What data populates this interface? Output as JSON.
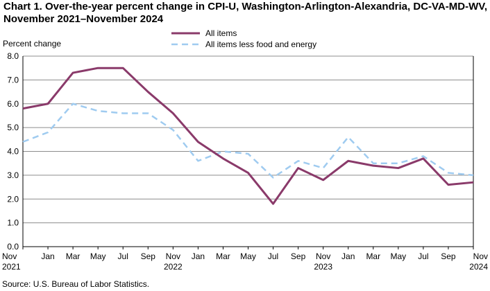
{
  "chart_data": {
    "type": "line",
    "title": "Chart 1. Over-the-year percent change in CPI-U, Washington-Arlington-Alexandria,  DC-VA-MD-WV, November 2021–November 2024",
    "ylabel": "Percent change",
    "xlabel": "",
    "ylim": [
      0,
      8
    ],
    "yticks": [
      "0.0",
      "1.0",
      "2.0",
      "3.0",
      "4.0",
      "5.0",
      "6.0",
      "7.0",
      "8.0"
    ],
    "xticks": [
      {
        "label": "Nov",
        "year": "2021"
      },
      {
        "label": "Jan",
        "year": ""
      },
      {
        "label": "Mar",
        "year": ""
      },
      {
        "label": "May",
        "year": ""
      },
      {
        "label": "Jul",
        "year": ""
      },
      {
        "label": "Sep",
        "year": ""
      },
      {
        "label": "Nov",
        "year": "2022"
      },
      {
        "label": "Jan",
        "year": ""
      },
      {
        "label": "Mar",
        "year": ""
      },
      {
        "label": "May",
        "year": ""
      },
      {
        "label": "Jul",
        "year": ""
      },
      {
        "label": "Sep",
        "year": ""
      },
      {
        "label": "Nov",
        "year": "2023"
      },
      {
        "label": "Jan",
        "year": ""
      },
      {
        "label": "Mar",
        "year": ""
      },
      {
        "label": "May",
        "year": ""
      },
      {
        "label": "Jul",
        "year": ""
      },
      {
        "label": "Sep",
        "year": ""
      },
      {
        "label": "Nov",
        "year": "2024"
      }
    ],
    "grid": true,
    "legend": "top-center",
    "series": [
      {
        "name": "All items",
        "color": "#8a3a6a",
        "style": "solid",
        "values": [
          5.8,
          6.0,
          7.3,
          7.5,
          7.5,
          6.5,
          5.6,
          4.4,
          3.7,
          3.1,
          1.8,
          3.3,
          2.8,
          3.6,
          3.4,
          3.3,
          3.7,
          2.6,
          2.7
        ]
      },
      {
        "name": "All items less food and energy",
        "color": "#9fcbf0",
        "style": "dashed",
        "values": [
          4.4,
          4.8,
          6.0,
          5.7,
          5.6,
          5.6,
          4.9,
          3.6,
          4.0,
          3.9,
          2.9,
          3.6,
          3.3,
          4.6,
          3.5,
          3.5,
          3.8,
          3.1,
          3.0
        ]
      }
    ]
  },
  "source": "Source: U.S. Bureau  of Labor Statistics."
}
